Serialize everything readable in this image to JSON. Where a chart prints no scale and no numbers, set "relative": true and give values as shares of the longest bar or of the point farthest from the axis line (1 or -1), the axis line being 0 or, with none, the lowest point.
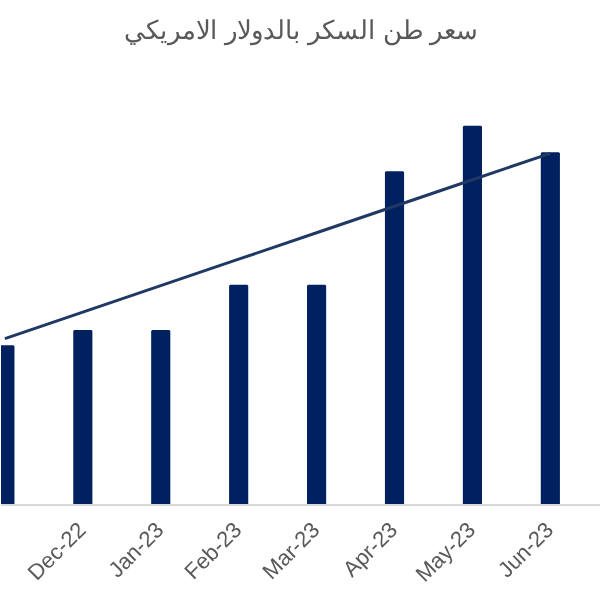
{
  "chart_data": {
    "type": "bar",
    "title": "سعر طن السكر بالدولار الامريكي",
    "relative": true,
    "grid": false,
    "categories": [
      null,
      "Dec-22",
      "Jan-23",
      "Feb-23",
      "Mar-23",
      "Apr-23",
      "May-23",
      "Jun-23"
    ],
    "series": [
      {
        "color": "#002060",
        "values": [
          0.42,
          0.46,
          0.46,
          0.58,
          0.58,
          0.88,
          1,
          0.93
        ]
      },
      {
        "type": "line",
        "color": "#203864",
        "line_style": "solid",
        "marker": "none",
        "values": [
          0.44,
          0.51,
          0.58,
          0.65,
          0.72,
          0.79,
          0.86,
          0.93
        ]
      }
    ]
  }
}
